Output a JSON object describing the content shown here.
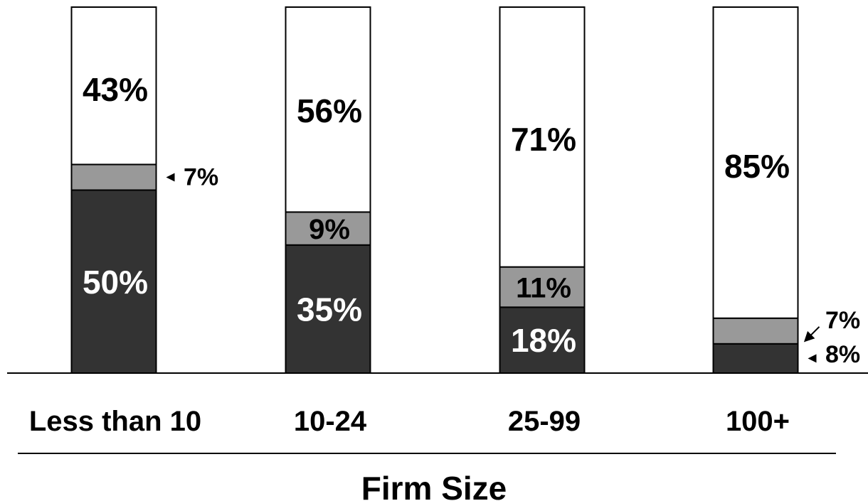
{
  "chart_data": {
    "type": "bar",
    "stacked": true,
    "orientation": "vertical",
    "categories": [
      "Less than 10",
      "10-24",
      "25-99",
      "100+"
    ],
    "series": [
      {
        "values": [
          50,
          35,
          18,
          8
        ],
        "color": "#333333",
        "label_color": "#ffffff"
      },
      {
        "values": [
          7,
          9,
          11,
          7
        ],
        "color": "#999999",
        "label_color": "#000000"
      },
      {
        "values": [
          43,
          56,
          71,
          85
        ],
        "color": "#ffffff",
        "label_color": "#000000"
      }
    ],
    "data_labels": [
      [
        "50%",
        "35%",
        "18%",
        "8%"
      ],
      [
        "7%",
        "9%",
        "11%",
        "7%"
      ],
      [
        "43%",
        "56%",
        "71%",
        "85%"
      ]
    ],
    "xlabel": "Firm Size",
    "ylabel": "",
    "ylim": [
      0,
      100
    ],
    "grid": false,
    "legend": "none"
  }
}
